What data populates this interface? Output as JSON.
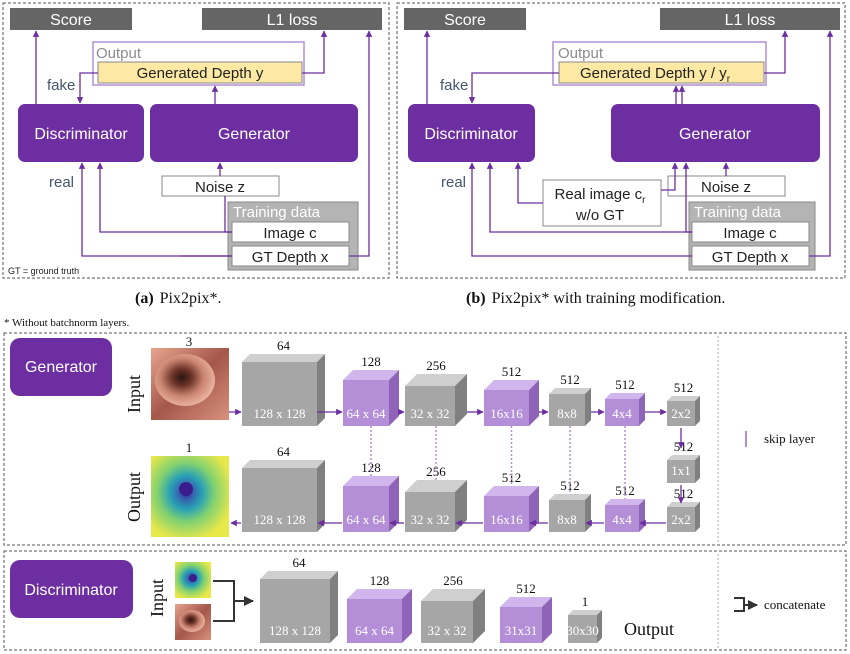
{
  "colors": {
    "purple": "#6c2ea0",
    "purple_light": "#b48fd8",
    "purple_top": "#d0b6ec",
    "purple_side": "#8e63b8",
    "gray_box": "#656565",
    "gray_front": "#a6a6a6",
    "gray_top": "#cfcfcf",
    "gray_side": "#808080",
    "gen_depth": "#fde9a3",
    "text_dark": "#44546a",
    "arrow": "#6c2ea0"
  },
  "panel_a": {
    "score": "Score",
    "l1": "L1 loss",
    "output": "Output",
    "generated": "Generated Depth y",
    "fake": "fake",
    "real": "real",
    "discriminator": "Discriminator",
    "generator": "Generator",
    "noise": "Noise z",
    "training": "Training data",
    "image": "Image c",
    "gtdepth": "GT Depth x",
    "gt_note": "GT = ground truth",
    "caption_tag": "(a)",
    "caption": "Pix2pix*."
  },
  "panel_b": {
    "score": "Score",
    "l1": "L1 loss",
    "output": "Output",
    "generated": "Generated Depth y / y",
    "generated_sub": "r",
    "fake": "fake",
    "real": "real",
    "discriminator": "Discriminator",
    "generator": "Generator",
    "noise": "Noise z",
    "realimage": "Real image c",
    "realimage_sub": "r",
    "wogt": "w/o GT",
    "training": "Training data",
    "image": "Image c",
    "gtdepth": "GT Depth x",
    "caption_tag": "(b)",
    "caption": "Pix2pix* with training modification."
  },
  "footnote": "* Without batchnorm layers.",
  "generator_section": {
    "title": "Generator",
    "input_label": "Input",
    "output_label": "Output",
    "input_channels": "3",
    "output_channels": "1",
    "skip_legend": "skip layer",
    "encoder": [
      {
        "ch": "64",
        "size": "128 x 128",
        "color": "gray"
      },
      {
        "ch": "128",
        "size": "64 x 64",
        "color": "purple"
      },
      {
        "ch": "256",
        "size": "32 x 32",
        "color": "gray"
      },
      {
        "ch": "512",
        "size": "16x16",
        "color": "purple"
      },
      {
        "ch": "512",
        "size": "8x8",
        "color": "gray"
      },
      {
        "ch": "512",
        "size": "4x4",
        "color": "purple"
      },
      {
        "ch": "512",
        "size": "2x2",
        "color": "gray"
      }
    ],
    "bottleneck": {
      "ch": "512",
      "size": "1x1"
    },
    "decoder": [
      {
        "ch": "64",
        "size": "128 x 128",
        "color": "gray"
      },
      {
        "ch": "128",
        "size": "64 x 64",
        "color": "purple"
      },
      {
        "ch": "256",
        "size": "32 x 32",
        "color": "gray"
      },
      {
        "ch": "512",
        "size": "16x16",
        "color": "purple"
      },
      {
        "ch": "512",
        "size": "8x8",
        "color": "gray"
      },
      {
        "ch": "512",
        "size": "4x4",
        "color": "purple"
      },
      {
        "ch": "512",
        "size": "2x2",
        "color": "gray"
      }
    ]
  },
  "discriminator_section": {
    "title": "Discriminator",
    "input_label": "Input",
    "output_label": "Output",
    "concat_legend": "concatenate",
    "layers": [
      {
        "ch": "64",
        "size": "128 x 128",
        "color": "gray"
      },
      {
        "ch": "128",
        "size": "64 x 64",
        "color": "purple"
      },
      {
        "ch": "256",
        "size": "32 x 32",
        "color": "gray"
      },
      {
        "ch": "512",
        "size": "31x31",
        "color": "purple"
      },
      {
        "ch": "1",
        "size": "30x30",
        "color": "gray"
      }
    ]
  }
}
